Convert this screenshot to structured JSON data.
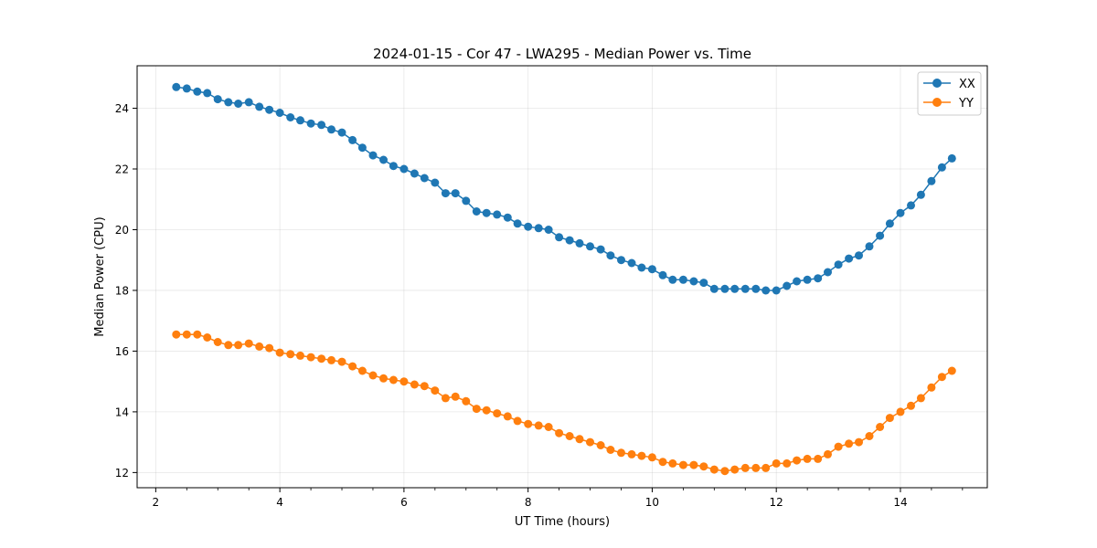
{
  "chart_data": {
    "type": "line",
    "title": "2024-01-15 - Cor 47 - LWA295 - Median Power vs. Time",
    "xlabel": "UT Time (hours)",
    "ylabel": "Median Power (CPU)",
    "xlim": [
      1.7,
      15.4
    ],
    "ylim": [
      11.5,
      25.4
    ],
    "xticks": [
      2,
      4,
      6,
      8,
      10,
      12,
      14
    ],
    "xtick_labels": [
      "2",
      "4",
      "6",
      "8",
      "10",
      "12",
      "14"
    ],
    "yticks": [
      12,
      14,
      16,
      18,
      20,
      22,
      24
    ],
    "ytick_labels": [
      "12",
      "14",
      "16",
      "18",
      "20",
      "22",
      "24"
    ],
    "grid": true,
    "legend_position": "top-right",
    "x": [
      2.33,
      2.5,
      2.67,
      2.83,
      3.0,
      3.17,
      3.33,
      3.5,
      3.67,
      3.83,
      4.0,
      4.17,
      4.33,
      4.5,
      4.67,
      4.83,
      5.0,
      5.17,
      5.33,
      5.5,
      5.67,
      5.83,
      6.0,
      6.17,
      6.33,
      6.5,
      6.67,
      6.83,
      7.0,
      7.17,
      7.33,
      7.5,
      7.67,
      7.83,
      8.0,
      8.17,
      8.33,
      8.5,
      8.67,
      8.83,
      9.0,
      9.17,
      9.33,
      9.5,
      9.67,
      9.83,
      10.0,
      10.17,
      10.33,
      10.5,
      10.67,
      10.83,
      11.0,
      11.17,
      11.33,
      11.5,
      11.67,
      11.83,
      12.0,
      12.17,
      12.33,
      12.5,
      12.67,
      12.83,
      13.0,
      13.17,
      13.33,
      13.5,
      13.67,
      13.83,
      14.0,
      14.17,
      14.33,
      14.5,
      14.67,
      14.83
    ],
    "series": [
      {
        "name": "XX",
        "color": "#1f77b4",
        "values": [
          24.7,
          24.65,
          24.55,
          24.5,
          24.3,
          24.2,
          24.15,
          24.2,
          24.05,
          23.95,
          23.85,
          23.7,
          23.6,
          23.5,
          23.45,
          23.3,
          23.2,
          22.95,
          22.7,
          22.45,
          22.3,
          22.1,
          22.0,
          21.85,
          21.7,
          21.55,
          21.2,
          21.2,
          20.95,
          20.6,
          20.55,
          20.5,
          20.4,
          20.2,
          20.1,
          20.05,
          20.0,
          19.75,
          19.65,
          19.55,
          19.45,
          19.35,
          19.15,
          19.0,
          18.9,
          18.75,
          18.7,
          18.5,
          18.35,
          18.35,
          18.3,
          18.25,
          18.05,
          18.05,
          18.05,
          18.05,
          18.05,
          18.0,
          18.0,
          18.15,
          18.3,
          18.35,
          18.4,
          18.6,
          18.85,
          19.05,
          19.15,
          19.45,
          19.8,
          20.2,
          20.55,
          20.8,
          21.15,
          21.6,
          22.05,
          22.35
        ]
      },
      {
        "name": "YY",
        "color": "#ff7f0e",
        "values": [
          16.55,
          16.55,
          16.55,
          16.45,
          16.3,
          16.2,
          16.2,
          16.25,
          16.15,
          16.1,
          15.95,
          15.9,
          15.85,
          15.8,
          15.75,
          15.7,
          15.65,
          15.5,
          15.35,
          15.2,
          15.1,
          15.05,
          15.0,
          14.9,
          14.85,
          14.7,
          14.45,
          14.5,
          14.35,
          14.1,
          14.05,
          13.95,
          13.85,
          13.7,
          13.6,
          13.55,
          13.5,
          13.3,
          13.2,
          13.1,
          13.0,
          12.9,
          12.75,
          12.65,
          12.6,
          12.55,
          12.5,
          12.35,
          12.3,
          12.25,
          12.25,
          12.2,
          12.1,
          12.05,
          12.1,
          12.15,
          12.15,
          12.15,
          12.3,
          12.3,
          12.4,
          12.45,
          12.45,
          12.6,
          12.85,
          12.95,
          13.0,
          13.2,
          13.5,
          13.8,
          14.0,
          14.2,
          14.45,
          14.8,
          15.15,
          15.35
        ]
      }
    ]
  }
}
